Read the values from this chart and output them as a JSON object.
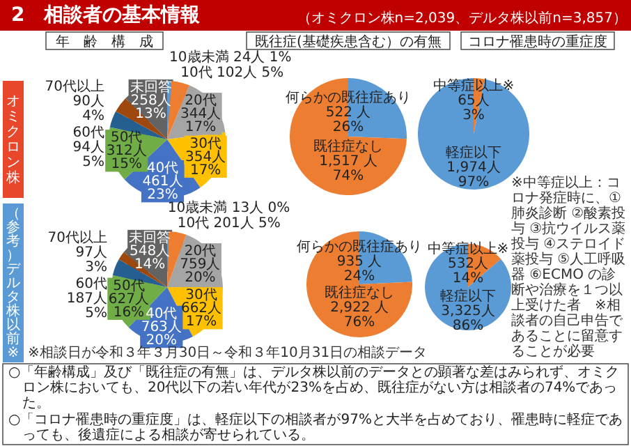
{
  "chart_data": [
    {
      "type": "pie",
      "title": "年　齢　構　成",
      "categories": [
        "10歳未満",
        "10代",
        "20代",
        "30代",
        "40代",
        "50代",
        "60代",
        "70代以上",
        "未回答"
      ],
      "values": [
        24,
        102,
        344,
        354,
        461,
        312,
        94,
        90,
        258
      ],
      "colors": [
        "#5b9bd5",
        "#ed7d31",
        "#a5a5a5",
        "#ffc000",
        "#4472c4",
        "#70ad47",
        "#255e91",
        "#9e480e",
        "#636363"
      ],
      "value_labels": [
        "24人\n1%",
        "102人\n5%",
        "344人\n17%",
        "354人\n17%",
        "461人\n23%",
        "312人\n15%",
        "94人\n5%",
        "90人\n4%",
        "258人\n13%"
      ],
      "annotations": [
        "2　相談者の基本情報",
        "（オミクロン株n=2,039、デルタ株以前n=3,857）",
        "オミクロン株"
      ]
    },
    {
      "type": "pie",
      "title": "既往症(基礎疾患含む）の有無",
      "categories": [
        "何らかの既往症あり",
        "既往症なし"
      ],
      "values": [
        522,
        1517
      ],
      "colors": [
        "#5b9bd5",
        "#ed7d31"
      ],
      "value_labels": [
        "522 人\n26%",
        "1,517 人\n74%"
      ]
    },
    {
      "type": "pie",
      "title": "コロナ罹患時の重症度",
      "categories": [
        "中等症以上※",
        "軽症以下"
      ],
      "values": [
        65,
        1974
      ],
      "colors": [
        "#ed7d31",
        "#5b9bd5"
      ],
      "value_labels": [
        "65人\n3%",
        "1,974人\n97%"
      ]
    },
    {
      "type": "pie",
      "categories": [
        "10歳未満",
        "10代",
        "20代",
        "30代",
        "40代",
        "50代",
        "60代",
        "70代以上",
        "未回答"
      ],
      "values": [
        13,
        201,
        759,
        662,
        763,
        627,
        187,
        97,
        548
      ],
      "colors": [
        "#5b9bd5",
        "#ed7d31",
        "#a5a5a5",
        "#ffc000",
        "#4472c4",
        "#70ad47",
        "#255e91",
        "#9e480e",
        "#636363"
      ],
      "value_labels": [
        "13人\n0%",
        "201人\n5%",
        "759人\n20%",
        "662人\n17%",
        "763人\n20%",
        "627人\n16%",
        "187人\n5%",
        "97人\n3%",
        "548人\n14%"
      ],
      "annotations": [
        "（参考）デルタ株以前※",
        "※相談日が令和３年３月30日～令和３年10月31日の相談データ"
      ]
    },
    {
      "type": "pie",
      "categories": [
        "何らかの既往症あり",
        "既往症なし"
      ],
      "values": [
        935,
        2922
      ],
      "colors": [
        "#5b9bd5",
        "#ed7d31"
      ],
      "value_labels": [
        "935 人\n24%",
        "2,922 人\n76%"
      ]
    },
    {
      "type": "pie",
      "categories": [
        "中等症以上※",
        "軽症以下"
      ],
      "values": [
        532,
        3325
      ],
      "colors": [
        "#ed7d31",
        "#5b9bd5"
      ],
      "value_labels": [
        "532人\n14%",
        "3,325人\n86%"
      ],
      "annotations": [
        "※中等症以上：コロナ発症時に、①肺炎診断 ②酸素投与 ③抗ウイルス薬投与 ④ステロイド薬投与 ⑤人工呼吸器 ⑥ECMO の診断や治療を１つ以上受けた者　※相談者の自己申告であることに留意することが必要",
        "○「年齢構成」及び「既往症の有無」は、デルタ株以前のデータとの顕著な差はみられず、オミクロン株においても、20代以下の若い年代が23%を占め、既往症がない方は相談者の74%であった。",
        "○「コロナ罹患時の重症度」は、軽症以下の相談者が97%と大半を占めており、罹患時に軽症であっても、後遺症による相談が寄せられている。"
      ]
    }
  ]
}
